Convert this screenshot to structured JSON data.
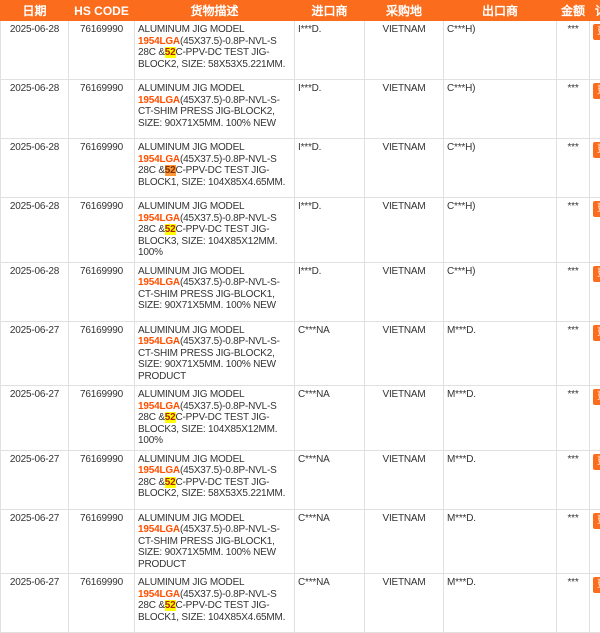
{
  "colors": {
    "accent": "#fb6c1c",
    "model_color": "#ff5000",
    "hl_yellow": "#ffff00",
    "hl_active": "#ff9837"
  },
  "actions": {
    "more_label": "更多"
  },
  "header": {
    "columns": [
      {
        "label": "日期"
      },
      {
        "label": "HS CODE"
      },
      {
        "label": "货物描述"
      },
      {
        "label": "进口商"
      },
      {
        "label": "采购地"
      },
      {
        "label": "出口商"
      },
      {
        "label": "金额"
      },
      {
        "label": "详细"
      }
    ]
  },
  "rows": [
    {
      "date": "2025-06-28",
      "hs": "76169990",
      "desc_pre": "ALUMINUM JIG MODEL ",
      "model": "1954LGA",
      "desc_mid": "(45X37.5)-0.8P-NVL-S 28C &",
      "hl": "52",
      "hl_class": "yellow",
      "desc_post": "C-PPV-DC TEST JIG-BLOCK2, SIZE: 58X53X5.221MM.",
      "importer": "I***D.",
      "origin": "VIETNAM",
      "exporter": "C***H)",
      "amount": "***"
    },
    {
      "date": "2025-06-28",
      "hs": "76169990",
      "desc_pre": "ALUMINUM JIG MODEL ",
      "model": "1954LGA",
      "desc_mid": "(45X37.5)-0.8P-NVL-S-CT-SHIM PRESS JIG-BLOCK2, SIZE: 90X71X5MM. 100% NEW",
      "hl": "",
      "hl_class": "",
      "desc_post": "",
      "importer": "I***D.",
      "origin": "VIETNAM",
      "exporter": "C***H)",
      "amount": "***"
    },
    {
      "date": "2025-06-28",
      "hs": "76169990",
      "desc_pre": "ALUMINUM JIG MODEL ",
      "model": "1954LGA",
      "desc_mid": "(45X37.5)-0.8P-NVL-S 28C &",
      "hl": "52",
      "hl_class": "active",
      "desc_post": "C-PPV-DC TEST JIG-BLOCK1, SIZE: 104X85X4.65MM.",
      "importer": "I***D.",
      "origin": "VIETNAM",
      "exporter": "C***H)",
      "amount": "***"
    },
    {
      "date": "2025-06-28",
      "hs": "76169990",
      "desc_pre": "ALUMINUM JIG MODEL ",
      "model": "1954LGA",
      "desc_mid": "(45X37.5)-0.8P-NVL-S 28C &",
      "hl": "52",
      "hl_class": "yellow",
      "desc_post": "C-PPV-DC TEST JIG-BLOCK3, SIZE: 104X85X12MM. 100%",
      "importer": "I***D.",
      "origin": "VIETNAM",
      "exporter": "C***H)",
      "amount": "***"
    },
    {
      "date": "2025-06-28",
      "hs": "76169990",
      "desc_pre": "ALUMINUM JIG MODEL ",
      "model": "1954LGA",
      "desc_mid": "(45X37.5)-0.8P-NVL-S-CT-SHIM PRESS JIG-BLOCK1, SIZE: 90X71X5MM. 100% NEW",
      "hl": "",
      "hl_class": "",
      "desc_post": "",
      "importer": "I***D.",
      "origin": "VIETNAM",
      "exporter": "C***H)",
      "amount": "***"
    },
    {
      "date": "2025-06-27",
      "hs": "76169990",
      "desc_pre": "ALUMINUM JIG MODEL ",
      "model": "1954LGA",
      "desc_mid": "(45X37.5)-0.8P-NVL-S-CT-SHIM PRESS JIG-BLOCK2, SIZE: 90X71X5MM. 100% NEW PRODUCT",
      "hl": "",
      "hl_class": "",
      "desc_post": "",
      "importer": "C***NA",
      "origin": "VIETNAM",
      "exporter": "M***D.",
      "amount": "***"
    },
    {
      "date": "2025-06-27",
      "hs": "76169990",
      "desc_pre": "ALUMINUM JIG MODEL ",
      "model": "1954LGA",
      "desc_mid": "(45X37.5)-0.8P-NVL-S 28C &",
      "hl": "52",
      "hl_class": "yellow",
      "desc_post": "C-PPV-DC TEST JIG-BLOCK3, SIZE: 104X85X12MM. 100%",
      "importer": "C***NA",
      "origin": "VIETNAM",
      "exporter": "M***D.",
      "amount": "***"
    },
    {
      "date": "2025-06-27",
      "hs": "76169990",
      "desc_pre": "ALUMINUM JIG MODEL ",
      "model": "1954LGA",
      "desc_mid": "(45X37.5)-0.8P-NVL-S 28C &",
      "hl": "52",
      "hl_class": "yellow",
      "desc_post": "C-PPV-DC TEST JIG-BLOCK2, SIZE: 58X53X5.221MM.",
      "importer": "C***NA",
      "origin": "VIETNAM",
      "exporter": "M***D.",
      "amount": "***"
    },
    {
      "date": "2025-06-27",
      "hs": "76169990",
      "desc_pre": "ALUMINUM JIG MODEL ",
      "model": "1954LGA",
      "desc_mid": "(45X37.5)-0.8P-NVL-S-CT-SHIM PRESS JIG-BLOCK1, SIZE: 90X71X5MM. 100% NEW PRODUCT",
      "hl": "",
      "hl_class": "",
      "desc_post": "",
      "importer": "C***NA",
      "origin": "VIETNAM",
      "exporter": "M***D.",
      "amount": "***"
    },
    {
      "date": "2025-06-27",
      "hs": "76169990",
      "desc_pre": "ALUMINUM JIG MODEL ",
      "model": "1954LGA",
      "desc_mid": "(45X37.5)-0.8P-NVL-S 28C &",
      "hl": "52",
      "hl_class": "yellow",
      "desc_post": "C-PPV-DC TEST JIG-BLOCK1, SIZE: 104X85X4.65MM.",
      "importer": "C***NA",
      "origin": "VIETNAM",
      "exporter": "M***D.",
      "amount": "***"
    }
  ]
}
